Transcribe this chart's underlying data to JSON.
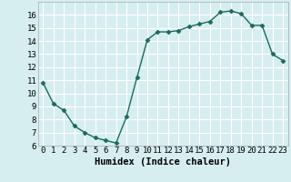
{
  "x": [
    0,
    1,
    2,
    3,
    4,
    5,
    6,
    7,
    8,
    9,
    10,
    11,
    12,
    13,
    14,
    15,
    16,
    17,
    18,
    19,
    20,
    21,
    22,
    23
  ],
  "y": [
    10.8,
    9.2,
    8.7,
    7.5,
    7.0,
    6.6,
    6.4,
    6.2,
    8.2,
    11.2,
    14.1,
    14.7,
    14.7,
    14.8,
    15.1,
    15.3,
    15.5,
    16.2,
    16.3,
    16.1,
    15.2,
    15.2,
    13.0,
    12.5
  ],
  "xlim": [
    -0.5,
    23.5
  ],
  "ylim": [
    6,
    17
  ],
  "yticks": [
    6,
    7,
    8,
    9,
    10,
    11,
    12,
    13,
    14,
    15,
    16
  ],
  "xticks": [
    0,
    1,
    2,
    3,
    4,
    5,
    6,
    7,
    8,
    9,
    10,
    11,
    12,
    13,
    14,
    15,
    16,
    17,
    18,
    19,
    20,
    21,
    22,
    23
  ],
  "xlabel": "Humidex (Indice chaleur)",
  "line_color": "#1a6b5a",
  "marker": "D",
  "marker_size": 2.5,
  "background_color": "#d6eef0",
  "grid_color": "#ffffff",
  "tick_fontsize": 6.5,
  "xlabel_fontsize": 7.5
}
